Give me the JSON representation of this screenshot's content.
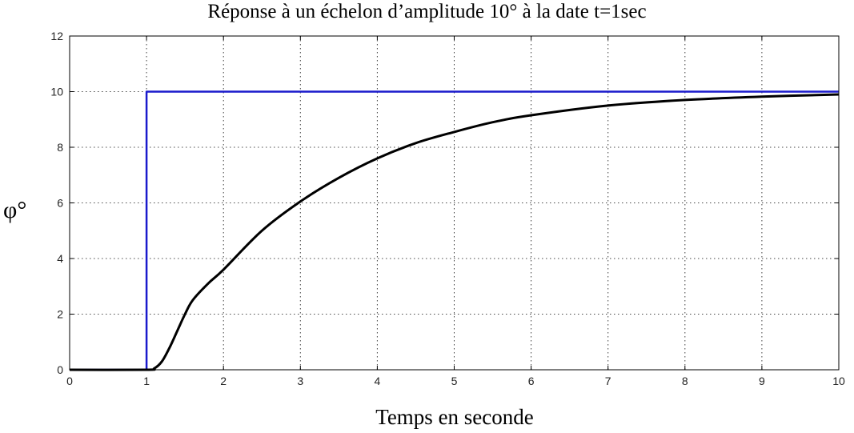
{
  "chart_data": {
    "type": "line",
    "title": "Réponse à un échelon d’amplitude 10° à la date t=1sec",
    "xlabel": "Temps en seconde",
    "ylabel": "φ°",
    "xlim": [
      0,
      10
    ],
    "ylim": [
      0,
      12
    ],
    "xticks": [
      "0",
      "1",
      "2",
      "3",
      "4",
      "5",
      "6",
      "7",
      "8",
      "9",
      "10"
    ],
    "yticks": [
      "0",
      "2",
      "4",
      "6",
      "8",
      "10",
      "12"
    ],
    "grid": true,
    "series": [
      {
        "color": "#1a1acc",
        "x": [
          0,
          1,
          1,
          10
        ],
        "y": [
          0,
          0,
          10,
          10
        ]
      },
      {
        "color": "#000000",
        "x": [
          0,
          1,
          1.1,
          1.2,
          1.3,
          1.4,
          1.5,
          1.6,
          1.8,
          2,
          2.5,
          3,
          3.5,
          4,
          4.5,
          5,
          5.5,
          6,
          7,
          8,
          9,
          10
        ],
        "y": [
          0,
          0,
          0.05,
          0.3,
          0.8,
          1.4,
          2.0,
          2.5,
          3.1,
          3.6,
          5.0,
          6.05,
          6.9,
          7.6,
          8.15,
          8.55,
          8.9,
          9.15,
          9.5,
          9.7,
          9.82,
          9.9
        ]
      }
    ]
  }
}
